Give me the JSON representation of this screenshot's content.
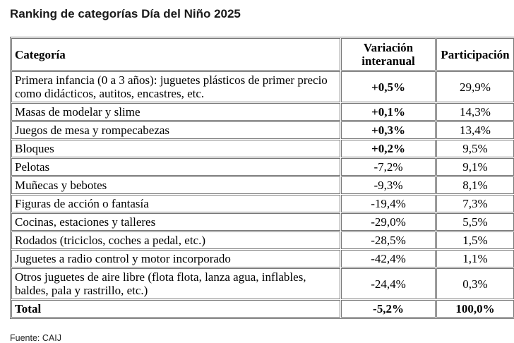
{
  "title": "Ranking de categorías Día del Niño 2025",
  "source": "Fuente: CAIJ",
  "colors": {
    "background": "#ffffff",
    "border": "#777777",
    "text": "#000000",
    "title_text": "#1a1a1a"
  },
  "chart_data": {
    "type": "table",
    "title": "Ranking de categorías Día del Niño 2025",
    "columns": [
      "Categoría",
      "Variación interanual",
      "Participación"
    ],
    "rows": [
      {
        "category": "Primera infancia (0 a 3 años): juguetes plásticos de primer precio como didácticos, autitos, encastres, etc.",
        "variation": "+0,5%",
        "share": "29,9%"
      },
      {
        "category": "Masas de modelar y slime",
        "variation": "+0,1%",
        "share": "14,3%"
      },
      {
        "category": "Juegos de mesa y rompecabezas",
        "variation": "+0,3%",
        "share": "13,4%"
      },
      {
        "category": "Bloques",
        "variation": "+0,2%",
        "share": "9,5%"
      },
      {
        "category": "Pelotas",
        "variation": "-7,2%",
        "share": "9,1%"
      },
      {
        "category": "Muñecas y bebotes",
        "variation": "-9,3%",
        "share": "8,1%"
      },
      {
        "category": "Figuras de acción o fantasía",
        "variation": "-19,4%",
        "share": "7,3%"
      },
      {
        "category": "Cocinas, estaciones y talleres",
        "variation": "-29,0%",
        "share": "5,5%"
      },
      {
        "category": "Rodados (triciclos, coches a pedal, etc.)",
        "variation": "-28,5%",
        "share": "1,5%"
      },
      {
        "category": "Juguetes a radio control y motor incorporado",
        "variation": "-42,4%",
        "share": "1,1%"
      },
      {
        "category": "Otros juguetes de aire libre (flota flota, lanza agua, inflables, baldes, pala y rastrillo, etc.)",
        "variation": "-24,4%",
        "share": "0,3%"
      },
      {
        "category": "Total",
        "variation": "-5,2%",
        "share": "100,0%"
      }
    ],
    "source": "Fuente: CAIJ"
  }
}
